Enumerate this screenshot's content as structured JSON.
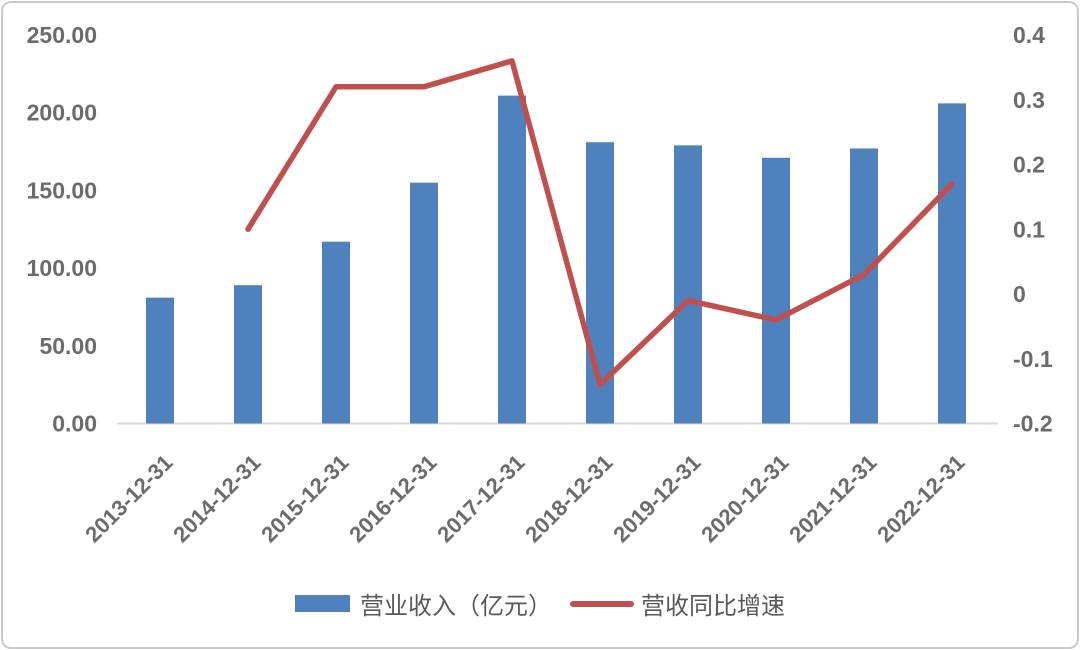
{
  "chart_data": {
    "type": "combo-bar-line",
    "title": "",
    "categories": [
      "2013-12-31",
      "2014-12-31",
      "2015-12-31",
      "2016-12-31",
      "2017-12-31",
      "2018-12-31",
      "2019-12-31",
      "2020-12-31",
      "2021-12-31",
      "2022-12-31"
    ],
    "series": [
      {
        "name": "营业收入（亿元）",
        "type": "bar",
        "axis": "left",
        "color": "#4f81bd",
        "values": [
          81,
          89,
          117,
          155,
          211,
          181,
          179,
          171,
          177,
          206
        ]
      },
      {
        "name": "营收同比增速",
        "type": "line",
        "axis": "right",
        "color": "#c0504d",
        "values": [
          null,
          0.1,
          0.32,
          0.32,
          0.36,
          -0.14,
          -0.01,
          -0.04,
          0.03,
          0.17
        ]
      }
    ],
    "left_axis": {
      "min": 0,
      "max": 250,
      "ticks": [
        "250.00",
        "200.00",
        "150.00",
        "100.00",
        "50.00",
        "0.00"
      ]
    },
    "right_axis": {
      "min": -0.2,
      "max": 0.4,
      "ticks": [
        "0.4",
        "0.3",
        "0.2",
        "0.1",
        "0",
        "-0.1",
        "-0.2"
      ]
    },
    "grid": false,
    "legend_position": "bottom"
  },
  "style": {
    "bar_color": "#4f81bd",
    "line_color": "#c0504d",
    "axis_text_color": "#6b6b6b",
    "legend_text_color": "#595959",
    "axis_line_color": "#d9d9d9",
    "frame_border_color": "#c9c9c9"
  }
}
